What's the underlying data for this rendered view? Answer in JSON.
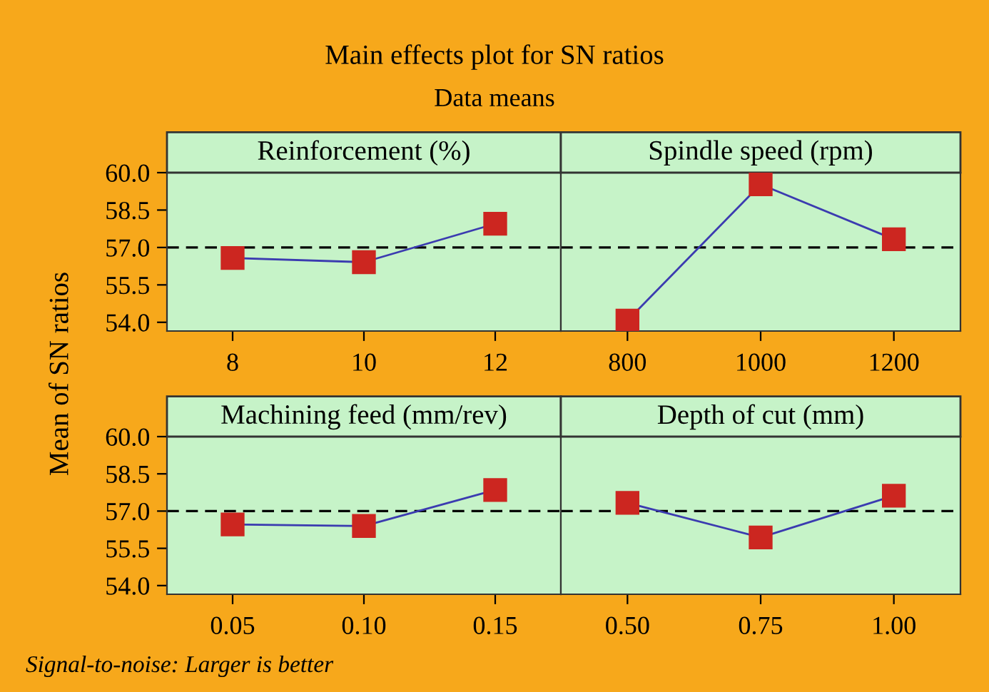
{
  "chart_data": [
    {
      "type": "line",
      "title": "Main effects plot for SN ratios",
      "subtitle": "Data means",
      "ylabel": "Mean of SN ratios",
      "xlabel": "Reinforcement (%)",
      "categories": [
        "8",
        "10",
        "12"
      ],
      "series": [
        {
          "color": "#3b3bb0",
          "values": [
            56.58,
            56.41,
            57.95
          ]
        }
      ],
      "marker": "square",
      "line_style": "solid",
      "ylim": [
        53.65,
        60.0
      ],
      "yticks": [
        {
          "value": 54.0,
          "label": "54.0"
        },
        {
          "value": 55.5,
          "label": "55.5"
        },
        {
          "value": 57.0,
          "label": "57.0"
        },
        {
          "value": 58.5,
          "label": "58.5"
        },
        {
          "value": 60.0,
          "label": "60.0"
        }
      ],
      "ref_lines": [
        {
          "axis": "y",
          "value": 57.0,
          "line_style": "dashed",
          "color": "#000000"
        }
      ],
      "grid": false,
      "legend": false,
      "annotations": [
        "Signal-to-noise: Larger is better"
      ]
    },
    {
      "type": "line",
      "xlabel": "Spindle speed (rpm)",
      "categories": [
        "800",
        "1000",
        "1200"
      ],
      "series": [
        {
          "color": "#3b3bb0",
          "values": [
            54.07,
            59.53,
            57.33
          ]
        }
      ],
      "marker": "square",
      "line_style": "solid",
      "ylim": [
        53.65,
        60.0
      ],
      "tick_labels": "x",
      "ref_lines": [
        {
          "axis": "y",
          "value": 57.0,
          "line_style": "dashed",
          "color": "#000000"
        }
      ],
      "grid": false,
      "legend": false
    },
    {
      "type": "line",
      "xlabel": "Machining feed (mm/rev)",
      "categories": [
        "0.05",
        "0.10",
        "0.15"
      ],
      "series": [
        {
          "color": "#3b3bb0",
          "values": [
            56.46,
            56.4,
            57.85
          ]
        }
      ],
      "marker": "square",
      "line_style": "solid",
      "ylim": [
        53.65,
        60.0
      ],
      "yticks": [
        {
          "value": 54.0,
          "label": "54.0"
        },
        {
          "value": 55.5,
          "label": "55.5"
        },
        {
          "value": 57.0,
          "label": "57.0"
        },
        {
          "value": 58.5,
          "label": "58.5"
        },
        {
          "value": 60.0,
          "label": "60.0"
        }
      ],
      "ref_lines": [
        {
          "axis": "y",
          "value": 57.0,
          "line_style": "dashed",
          "color": "#000000"
        }
      ],
      "grid": false,
      "legend": false
    },
    {
      "type": "line",
      "xlabel": "Depth of cut (mm)",
      "categories": [
        "0.50",
        "0.75",
        "1.00"
      ],
      "series": [
        {
          "color": "#3b3bb0",
          "values": [
            57.33,
            55.94,
            57.62
          ]
        }
      ],
      "marker": "square",
      "line_style": "solid",
      "ylim": [
        53.65,
        60.0
      ],
      "tick_labels": "x",
      "ref_lines": [
        {
          "axis": "y",
          "value": 57.0,
          "line_style": "dashed",
          "color": "#000000"
        }
      ],
      "grid": false,
      "legend": false
    }
  ]
}
